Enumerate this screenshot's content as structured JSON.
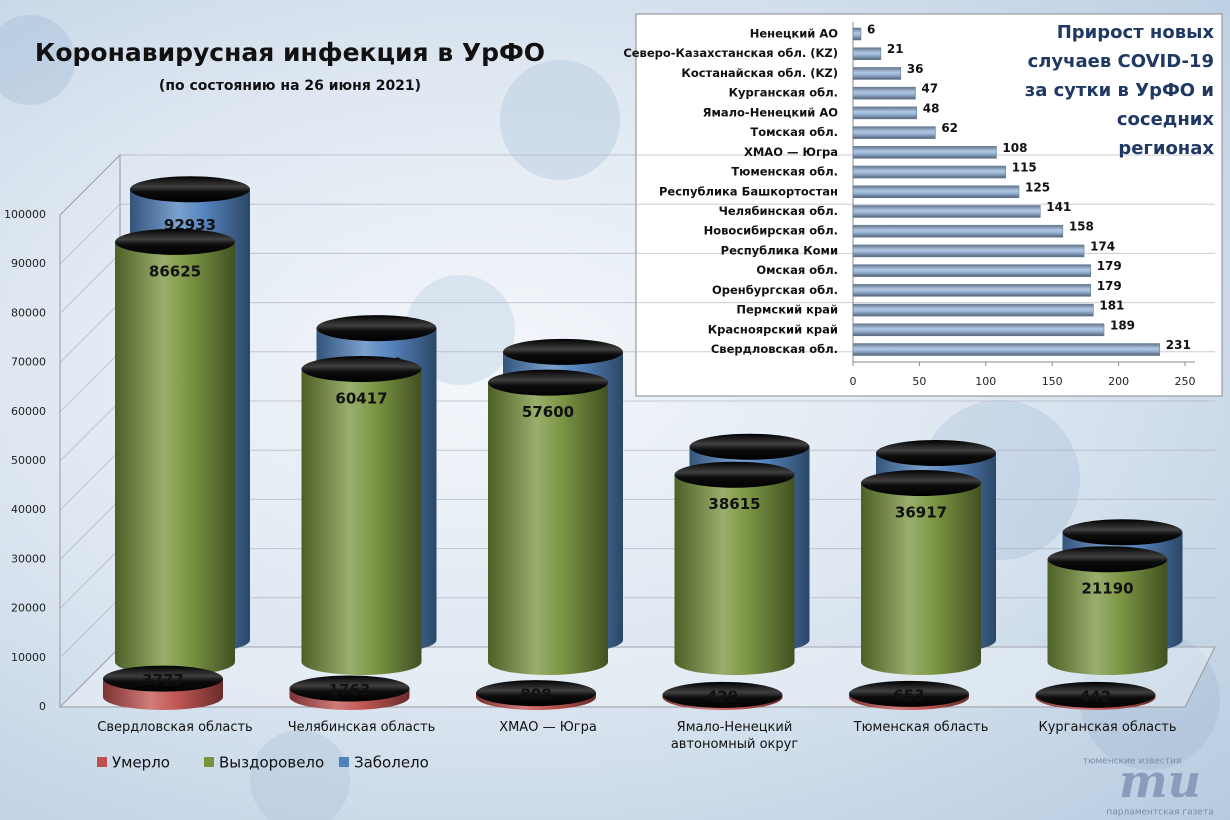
{
  "chart_data": [
    {
      "type": "bar",
      "orientation": "vertical",
      "title": "Коронавирусная инфекция в УрФО",
      "subtitle": "(по состоянию на 26 июня 2021)",
      "categories": [
        "Свердловская область",
        "Челябинская область",
        "ХМАО — Югра",
        "Ямало-Ненецкий автономный округ",
        "Тюменская область",
        "Курганская область"
      ],
      "series": [
        {
          "name": "Умерло",
          "color": "#c0504d",
          "values": [
            3777,
            1763,
            808,
            429,
            653,
            442
          ]
        },
        {
          "name": "Выздоровело",
          "color": "#77933c",
          "values": [
            86625,
            60417,
            57600,
            38615,
            36917,
            21190
          ]
        },
        {
          "name": "Заболело",
          "color": "#4f81bd",
          "values": [
            92933,
            64300,
            59410,
            39840,
            38549,
            22207
          ]
        }
      ],
      "ylim": [
        0,
        100000
      ],
      "yticks": [
        0,
        10000,
        20000,
        30000,
        40000,
        50000,
        60000,
        70000,
        80000,
        90000,
        100000
      ],
      "grid": true
    },
    {
      "type": "bar",
      "orientation": "horizontal",
      "title": "Прирост новых случаев COVID-19 за сутки в УрФО и соседних регионах",
      "categories": [
        "Ненецкий АО",
        "Северо-Казахстанская обл. (KZ)",
        "Костанайская обл. (KZ)",
        "Курганская обл.",
        "Ямало-Ненецкий АО",
        "Томская обл.",
        "ХМАО — Югра",
        "Тюменская обл.",
        "Республика Башкортостан",
        "Челябинская обл.",
        "Новосибирская обл.",
        "Республика Коми",
        "Омская обл.",
        "Оренбургская обл.",
        "Пермский край",
        "Красноярский край",
        "Свердловская обл."
      ],
      "values": [
        6,
        21,
        36,
        47,
        48,
        62,
        108,
        115,
        125,
        141,
        158,
        174,
        179,
        179,
        181,
        189,
        231
      ],
      "color": "#95b3d7",
      "xlim": [
        0,
        250
      ],
      "xticks": [
        0,
        50,
        100,
        150,
        200,
        250
      ],
      "grid": false
    }
  ],
  "logo": {
    "top": "тюменские известия",
    "mark": "ти",
    "bottom": "парламентская газета"
  }
}
